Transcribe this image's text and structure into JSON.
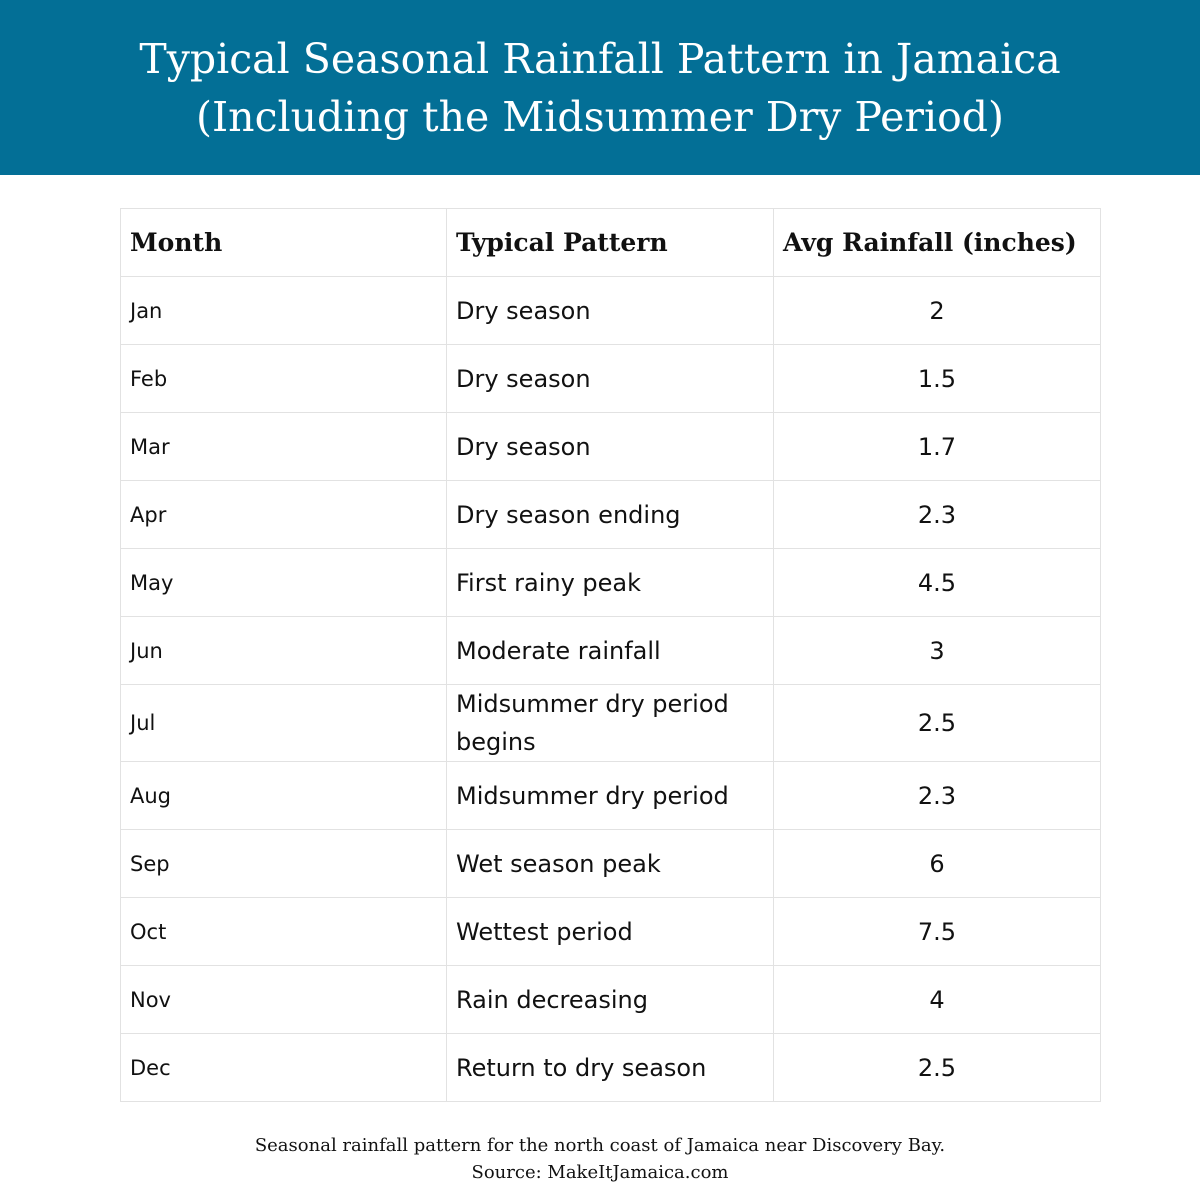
{
  "header": {
    "title_lines": [
      "Typical Seasonal Rainfall Pattern in Jamaica",
      "(Including the Midsummer Dry Period)"
    ]
  },
  "table": {
    "columns": [
      "Month",
      "Typical Pattern",
      "Avg Rainfall (inches)"
    ],
    "rows": [
      [
        "Jan",
        "Dry season",
        2
      ],
      [
        "Feb",
        "Dry season",
        1.5
      ],
      [
        "Mar",
        "Dry season",
        1.7
      ],
      [
        "Apr",
        "Dry season ending",
        2.3
      ],
      [
        "May",
        "First rainy peak",
        4.5
      ],
      [
        "Jun",
        "Moderate rainfall",
        3
      ],
      [
        "Jul",
        "Midsummer dry period begins",
        2.5
      ],
      [
        "Aug",
        "Midsummer dry period",
        2.3
      ],
      [
        "Sep",
        "Wet season peak",
        6
      ],
      [
        "Oct",
        "Wettest period",
        7.5
      ],
      [
        "Nov",
        "Rain decreasing",
        4
      ],
      [
        "Dec",
        "Return to dry season",
        2.5
      ]
    ]
  },
  "caption": [
    "Seasonal rainfall pattern for the north coast of Jamaica near Discovery Bay.",
    "Source: MakeItJamaica.com"
  ]
}
